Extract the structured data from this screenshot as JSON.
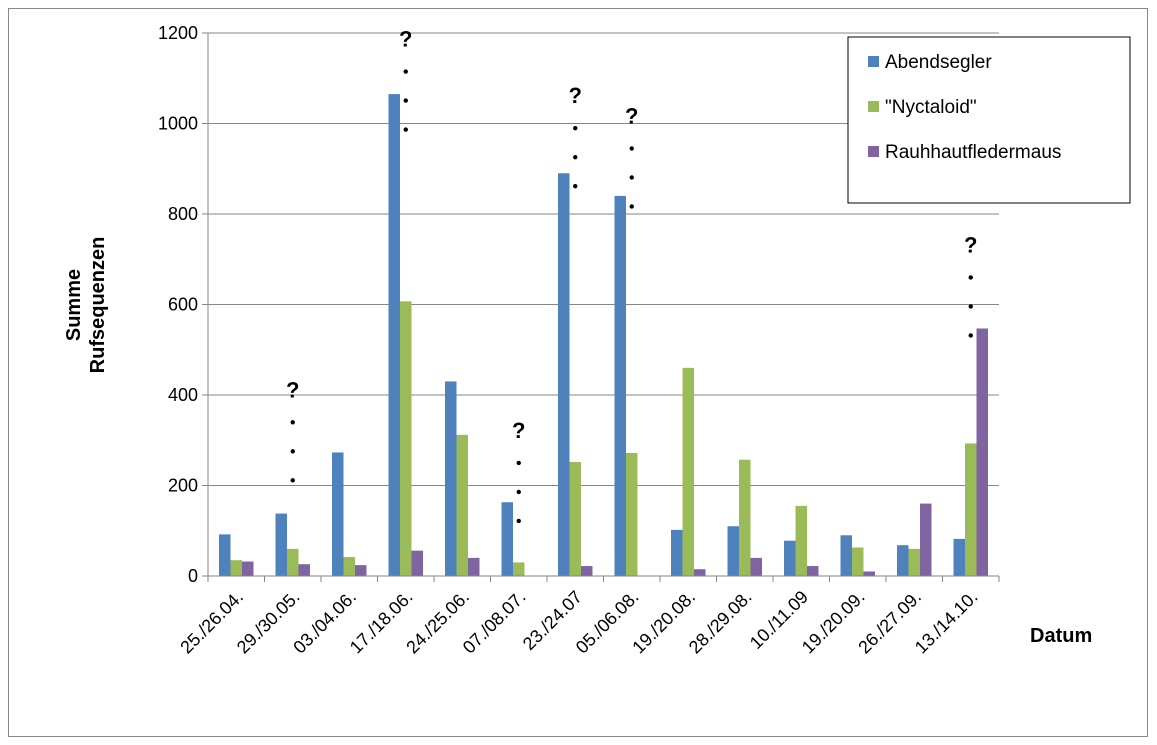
{
  "chart_data": {
    "type": "bar",
    "title": "",
    "xlabel": "Datum",
    "ylabel_lines": [
      "Summe",
      "Rufsequenzen"
    ],
    "ylim": [
      0,
      1200
    ],
    "yticks": [
      0,
      200,
      400,
      600,
      800,
      1000,
      1200
    ],
    "grid": true,
    "legend_position": "top-right",
    "categories": [
      "25./26.04.",
      "29./30.05.",
      "03./04.06.",
      "17./18.06.",
      "24./25.06.",
      "07./08.07.",
      "23./24.07",
      "05./06.08.",
      "19./20.08.",
      "28./29.08.",
      "10./11.09",
      "19./20.09.",
      "26./27.09.",
      "13./14.10."
    ],
    "series": [
      {
        "name": "Abendsegler",
        "color": "#4F81BD",
        "values": [
          92,
          138,
          273,
          1065,
          430,
          163,
          890,
          840,
          102,
          110,
          78,
          90,
          68,
          82
        ]
      },
      {
        "name": "\"Nyctaloid\"",
        "color": "#9BBB59",
        "values": [
          35,
          60,
          42,
          607,
          312,
          30,
          252,
          272,
          460,
          257,
          155,
          63,
          60,
          293
        ]
      },
      {
        "name": "Rauhhautfledermaus",
        "color": "#8064A2",
        "values": [
          32,
          26,
          24,
          56,
          40,
          0,
          22,
          0,
          15,
          40,
          22,
          10,
          160,
          547
        ]
      }
    ],
    "annotations": [
      {
        "category_index": 1,
        "text": "?",
        "y": 395
      },
      {
        "category_index": 3,
        "text": "?",
        "y": 1170
      },
      {
        "category_index": 5,
        "text": "?",
        "y": 305
      },
      {
        "category_index": 6,
        "text": "?",
        "y": 1045
      },
      {
        "category_index": 7,
        "text": "?",
        "y": 1000
      },
      {
        "category_index": 13,
        "text": "?",
        "y": 715
      }
    ]
  }
}
